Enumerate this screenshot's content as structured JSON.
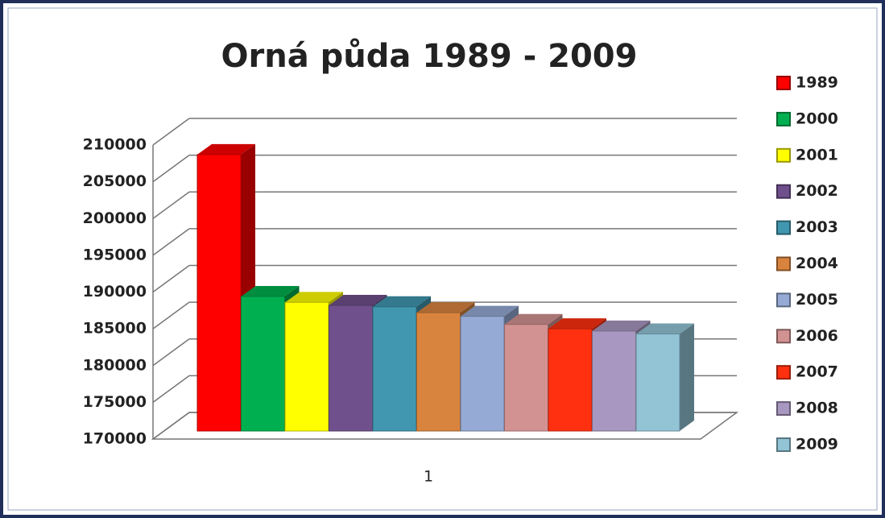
{
  "chart_data": {
    "type": "bar3d",
    "title": "Orná půda 1989 - 2009",
    "categories": [
      "1"
    ],
    "series": [
      {
        "name": "1989",
        "color": "#ff0000",
        "values": [
          207600
        ]
      },
      {
        "name": "2000",
        "color": "#00b050",
        "values": [
          188300
        ]
      },
      {
        "name": "2001",
        "color": "#ffff00",
        "values": [
          187500
        ]
      },
      {
        "name": "2002",
        "color": "#70508c",
        "values": [
          187100
        ]
      },
      {
        "name": "2003",
        "color": "#4197b0",
        "values": [
          186900
        ]
      },
      {
        "name": "2004",
        "color": "#d9843e",
        "values": [
          186100
        ]
      },
      {
        "name": "2005",
        "color": "#95aad4",
        "values": [
          185600
        ]
      },
      {
        "name": "2006",
        "color": "#d39292",
        "values": [
          184500
        ]
      },
      {
        "name": "2007",
        "color": "#ff3010",
        "values": [
          183900
        ]
      },
      {
        "name": "2008",
        "color": "#a897c0",
        "values": [
          183600
        ]
      },
      {
        "name": "2009",
        "color": "#92c4d6",
        "values": [
          183200
        ]
      }
    ],
    "ylim": [
      170000,
      210000
    ],
    "yticks": [
      170000,
      175000,
      180000,
      185000,
      190000,
      195000,
      200000,
      205000,
      210000
    ],
    "grid": true,
    "legend": "right"
  }
}
